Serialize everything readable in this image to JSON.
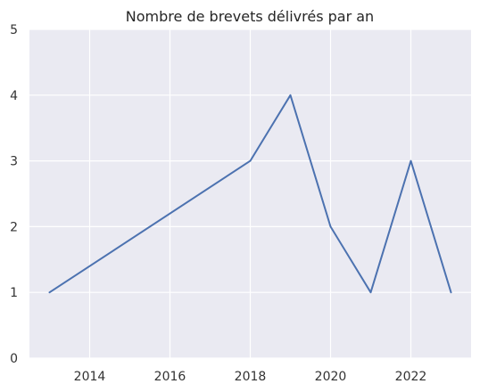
{
  "chart_data": {
    "type": "line",
    "title": "Nombre de brevets délivrés par an",
    "xlabel": "",
    "ylabel": "",
    "x": [
      2013,
      2018,
      2019,
      2020,
      2021,
      2022,
      2023
    ],
    "series": [
      {
        "values": [
          1,
          3,
          4,
          2,
          1,
          3,
          1
        ]
      }
    ],
    "xlim": [
      2012.5,
      2023.5
    ],
    "ylim": [
      0,
      5
    ],
    "xticks": [
      "2014",
      "2016",
      "2018",
      "2020",
      "2022"
    ],
    "yticks": [
      "0",
      "1",
      "2",
      "3",
      "4",
      "5"
    ],
    "grid": true,
    "legend": "none",
    "colors": {
      "background": "#eaeaf2",
      "grid": "#ffffff",
      "line": "#4c72b0"
    }
  }
}
